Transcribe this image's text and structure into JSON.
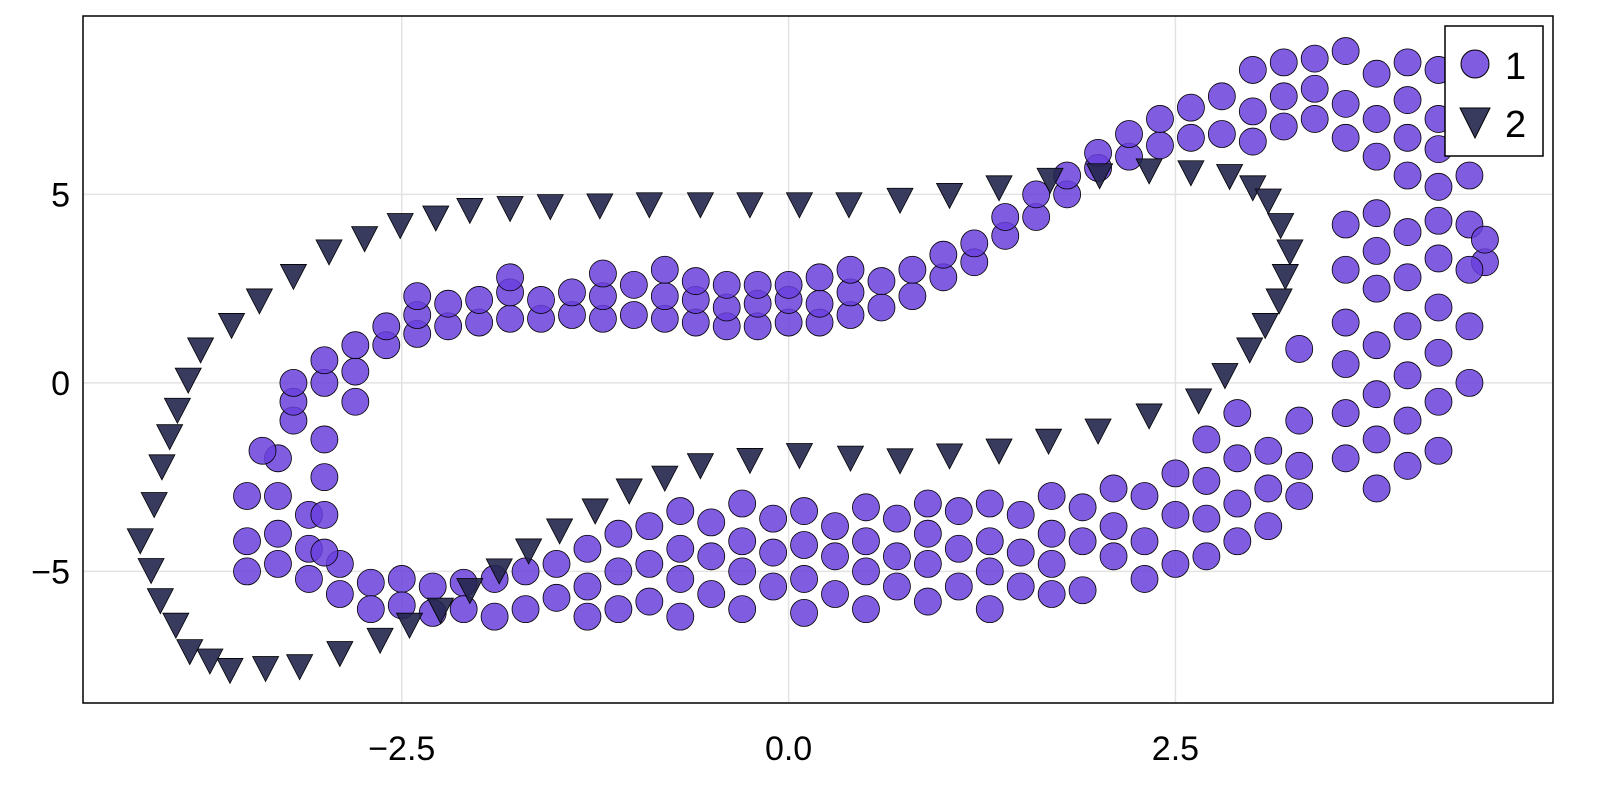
{
  "chart_data": {
    "type": "scatter",
    "title": "",
    "xlabel": "",
    "ylabel": "",
    "xlim": [
      -4.56,
      4.94
    ],
    "ylim": [
      -8.49,
      9.73
    ],
    "grid": true,
    "legend_position": "top-right",
    "xticks": [
      {
        "value": -2.5,
        "label": "−2.5"
      },
      {
        "value": 0,
        "label": "0.0"
      },
      {
        "value": 2.5,
        "label": "2.5"
      }
    ],
    "yticks": [
      {
        "value": -5,
        "label": "−5"
      },
      {
        "value": 0,
        "label": "0"
      },
      {
        "value": 5,
        "label": "5"
      }
    ],
    "series": [
      {
        "name": "1",
        "marker": "circle",
        "color": "#6a40dc",
        "points": [
          [
            -3.2,
            -1
          ],
          [
            -3.2,
            -0.5
          ],
          [
            -3.2,
            0
          ],
          [
            -3.0,
            -1.5
          ],
          [
            -3.0,
            0
          ],
          [
            -3.0,
            0.6
          ],
          [
            -2.8,
            0.3
          ],
          [
            -2.8,
            1.0
          ],
          [
            -2.6,
            1.0
          ],
          [
            -2.6,
            1.5
          ],
          [
            -2.4,
            1.3
          ],
          [
            -2.4,
            1.8
          ],
          [
            -2.4,
            2.3
          ],
          [
            -2.2,
            1.5
          ],
          [
            -2.2,
            2.1
          ],
          [
            -2.0,
            1.6
          ],
          [
            -2.0,
            2.2
          ],
          [
            -1.8,
            1.7
          ],
          [
            -1.8,
            2.4
          ],
          [
            -1.8,
            2.8
          ],
          [
            -1.6,
            1.7
          ],
          [
            -1.6,
            2.2
          ],
          [
            -1.4,
            1.8
          ],
          [
            -1.4,
            2.4
          ],
          [
            -1.2,
            1.7
          ],
          [
            -1.2,
            2.3
          ],
          [
            -1.2,
            2.9
          ],
          [
            -1.0,
            1.8
          ],
          [
            -1.0,
            2.6
          ],
          [
            -0.8,
            1.7
          ],
          [
            -0.8,
            2.3
          ],
          [
            -0.8,
            3.0
          ],
          [
            -0.6,
            1.6
          ],
          [
            -0.6,
            2.2
          ],
          [
            -0.6,
            2.7
          ],
          [
            -0.4,
            1.5
          ],
          [
            -0.4,
            2.0
          ],
          [
            -0.4,
            2.6
          ],
          [
            -0.2,
            1.5
          ],
          [
            -0.2,
            2.1
          ],
          [
            -0.2,
            2.6
          ],
          [
            0,
            1.6
          ],
          [
            0,
            2.2
          ],
          [
            0,
            2.6
          ],
          [
            0.2,
            1.6
          ],
          [
            0.2,
            2.1
          ],
          [
            0.2,
            2.8
          ],
          [
            0.4,
            1.8
          ],
          [
            0.4,
            2.4
          ],
          [
            0.4,
            3.0
          ],
          [
            0.6,
            2.0
          ],
          [
            0.6,
            2.7
          ],
          [
            0.8,
            2.3
          ],
          [
            0.8,
            3.0
          ],
          [
            1.0,
            2.8
          ],
          [
            1.0,
            3.4
          ],
          [
            1.2,
            3.2
          ],
          [
            1.2,
            3.7
          ],
          [
            1.4,
            3.9
          ],
          [
            1.4,
            4.4
          ],
          [
            1.6,
            4.4
          ],
          [
            1.6,
            5.0
          ],
          [
            1.8,
            5.0
          ],
          [
            1.8,
            5.5
          ],
          [
            2.0,
            5.7
          ],
          [
            2.0,
            6.1
          ],
          [
            2.2,
            6.0
          ],
          [
            2.2,
            6.6
          ],
          [
            2.4,
            6.3
          ],
          [
            2.4,
            7.0
          ],
          [
            2.6,
            6.5
          ],
          [
            2.6,
            7.3
          ],
          [
            2.8,
            6.6
          ],
          [
            2.8,
            7.6
          ],
          [
            3.0,
            6.4
          ],
          [
            3.0,
            7.2
          ],
          [
            3.0,
            8.3
          ],
          [
            3.2,
            6.8
          ],
          [
            3.2,
            7.6
          ],
          [
            3.2,
            8.5
          ],
          [
            3.4,
            7.0
          ],
          [
            3.4,
            7.8
          ],
          [
            3.4,
            8.6
          ],
          [
            3.6,
            6.5
          ],
          [
            3.6,
            7.4
          ],
          [
            3.6,
            8.8
          ],
          [
            3.8,
            6.0
          ],
          [
            3.8,
            7.0
          ],
          [
            3.8,
            8.2
          ],
          [
            4.0,
            5.5
          ],
          [
            4.0,
            6.5
          ],
          [
            4.0,
            7.5
          ],
          [
            4.0,
            8.5
          ],
          [
            4.2,
            5.2
          ],
          [
            4.2,
            6.2
          ],
          [
            4.2,
            7.0
          ],
          [
            4.2,
            8.3
          ],
          [
            4.4,
            4.2
          ],
          [
            4.4,
            5.5
          ],
          [
            4.4,
            6.8
          ],
          [
            4.5,
            3.2
          ],
          [
            4.5,
            3.8
          ],
          [
            3.6,
            4.2
          ],
          [
            3.6,
            3.0
          ],
          [
            3.6,
            1.6
          ],
          [
            3.6,
            0.5
          ],
          [
            3.6,
            -0.8
          ],
          [
            3.6,
            -2.0
          ],
          [
            3.8,
            4.5
          ],
          [
            3.8,
            3.5
          ],
          [
            3.8,
            2.5
          ],
          [
            3.8,
            1.0
          ],
          [
            3.8,
            -0.3
          ],
          [
            3.8,
            -1.5
          ],
          [
            3.8,
            -2.8
          ],
          [
            4.0,
            4.0
          ],
          [
            4.0,
            2.8
          ],
          [
            4.0,
            1.5
          ],
          [
            4.0,
            0.2
          ],
          [
            4.0,
            -1.0
          ],
          [
            4.0,
            -2.2
          ],
          [
            4.2,
            4.3
          ],
          [
            4.2,
            3.3
          ],
          [
            4.2,
            2.0
          ],
          [
            4.2,
            0.8
          ],
          [
            4.2,
            -0.5
          ],
          [
            4.2,
            -1.8
          ],
          [
            4.4,
            3.0
          ],
          [
            4.4,
            1.5
          ],
          [
            4.4,
            0.0
          ],
          [
            3.3,
            -1.0
          ],
          [
            3.3,
            -2.2
          ],
          [
            3.3,
            -3.0
          ],
          [
            3.3,
            0.9
          ],
          [
            3.1,
            -1.8
          ],
          [
            3.1,
            -2.8
          ],
          [
            3.1,
            -3.8
          ],
          [
            2.9,
            -0.8
          ],
          [
            2.9,
            -2.0
          ],
          [
            2.9,
            -3.2
          ],
          [
            2.9,
            -4.2
          ],
          [
            2.7,
            -1.5
          ],
          [
            2.7,
            -2.6
          ],
          [
            2.7,
            -3.6
          ],
          [
            2.7,
            -4.6
          ],
          [
            2.5,
            -2.4
          ],
          [
            2.5,
            -3.5
          ],
          [
            2.5,
            -4.8
          ],
          [
            2.3,
            -3.0
          ],
          [
            2.3,
            -4.2
          ],
          [
            2.3,
            -5.2
          ],
          [
            2.1,
            -2.8
          ],
          [
            2.1,
            -3.8
          ],
          [
            2.1,
            -4.6
          ],
          [
            1.9,
            -3.3
          ],
          [
            1.9,
            -4.2
          ],
          [
            1.9,
            -5.5
          ],
          [
            1.7,
            -3.0
          ],
          [
            1.7,
            -4.0
          ],
          [
            1.7,
            -4.8
          ],
          [
            1.7,
            -5.6
          ],
          [
            1.5,
            -3.5
          ],
          [
            1.5,
            -4.5
          ],
          [
            1.5,
            -5.4
          ],
          [
            1.3,
            -3.2
          ],
          [
            1.3,
            -4.2
          ],
          [
            1.3,
            -5.0
          ],
          [
            1.3,
            -6.0
          ],
          [
            1.1,
            -3.4
          ],
          [
            1.1,
            -4.4
          ],
          [
            1.1,
            -5.4
          ],
          [
            0.9,
            -3.2
          ],
          [
            0.9,
            -4.0
          ],
          [
            0.9,
            -4.8
          ],
          [
            0.9,
            -5.8
          ],
          [
            0.7,
            -3.6
          ],
          [
            0.7,
            -4.6
          ],
          [
            0.7,
            -5.4
          ],
          [
            0.5,
            -3.3
          ],
          [
            0.5,
            -4.2
          ],
          [
            0.5,
            -5.0
          ],
          [
            0.5,
            -6.0
          ],
          [
            0.3,
            -3.8
          ],
          [
            0.3,
            -4.6
          ],
          [
            0.3,
            -5.6
          ],
          [
            0.1,
            -3.4
          ],
          [
            0.1,
            -4.3
          ],
          [
            0.1,
            -5.2
          ],
          [
            0.1,
            -6.1
          ],
          [
            -0.1,
            -3.6
          ],
          [
            -0.1,
            -4.5
          ],
          [
            -0.1,
            -5.4
          ],
          [
            -0.3,
            -3.2
          ],
          [
            -0.3,
            -4.2
          ],
          [
            -0.3,
            -5.0
          ],
          [
            -0.3,
            -6.0
          ],
          [
            -0.5,
            -3.7
          ],
          [
            -0.5,
            -4.6
          ],
          [
            -0.5,
            -5.6
          ],
          [
            -0.7,
            -3.4
          ],
          [
            -0.7,
            -4.4
          ],
          [
            -0.7,
            -5.2
          ],
          [
            -0.7,
            -6.2
          ],
          [
            -0.9,
            -3.8
          ],
          [
            -0.9,
            -4.8
          ],
          [
            -0.9,
            -5.8
          ],
          [
            -1.1,
            -4.0
          ],
          [
            -1.1,
            -5.0
          ],
          [
            -1.1,
            -6.0
          ],
          [
            -1.3,
            -4.4
          ],
          [
            -1.3,
            -5.4
          ],
          [
            -1.3,
            -6.2
          ],
          [
            -1.5,
            -4.8
          ],
          [
            -1.5,
            -5.7
          ],
          [
            -1.7,
            -5.0
          ],
          [
            -1.7,
            -6.0
          ],
          [
            -1.9,
            -5.2
          ],
          [
            -1.9,
            -6.2
          ],
          [
            -2.1,
            -5.3
          ],
          [
            -2.1,
            -6.0
          ],
          [
            -2.3,
            -5.4
          ],
          [
            -2.3,
            -6.1
          ],
          [
            -2.5,
            -5.2
          ],
          [
            -2.5,
            -5.9
          ],
          [
            -2.7,
            -5.3
          ],
          [
            -2.7,
            -6.0
          ],
          [
            -2.9,
            -4.8
          ],
          [
            -2.9,
            -5.6
          ],
          [
            -3.1,
            -3.5
          ],
          [
            -3.1,
            -4.4
          ],
          [
            -3.1,
            -5.2
          ],
          [
            -3.3,
            -2.0
          ],
          [
            -3.3,
            -3.0
          ],
          [
            -3.3,
            -4.0
          ],
          [
            -3.3,
            -4.8
          ],
          [
            -3.5,
            -3.0
          ],
          [
            -3.5,
            -4.2
          ],
          [
            -3.5,
            -5.0
          ],
          [
            -3.0,
            -2.5
          ],
          [
            -3.0,
            -3.5
          ],
          [
            -3.0,
            -4.5
          ],
          [
            -2.8,
            -0.5
          ],
          [
            -3.4,
            -1.8
          ]
        ]
      },
      {
        "name": "2",
        "marker": "triangle-down",
        "color": "#22264d",
        "points": [
          [
            -4.19,
            -4.16
          ],
          [
            -4.1,
            -3.2
          ],
          [
            -4.05,
            -2.2
          ],
          [
            -4.0,
            -1.4
          ],
          [
            -3.95,
            -0.7
          ],
          [
            -3.88,
            0.1
          ],
          [
            -3.8,
            0.9
          ],
          [
            -3.6,
            1.55
          ],
          [
            -3.42,
            2.2
          ],
          [
            -3.2,
            2.85
          ],
          [
            -2.97,
            3.5
          ],
          [
            -2.74,
            3.85
          ],
          [
            -2.51,
            4.2
          ],
          [
            -2.28,
            4.4
          ],
          [
            -2.06,
            4.6
          ],
          [
            -1.8,
            4.65
          ],
          [
            -1.54,
            4.7
          ],
          [
            -1.22,
            4.72
          ],
          [
            -0.9,
            4.75
          ],
          [
            -0.57,
            4.75
          ],
          [
            -0.25,
            4.75
          ],
          [
            0.07,
            4.75
          ],
          [
            0.39,
            4.75
          ],
          [
            0.72,
            4.87
          ],
          [
            1.04,
            5.0
          ],
          [
            1.36,
            5.2
          ],
          [
            1.69,
            5.4
          ],
          [
            2.01,
            5.52
          ],
          [
            2.33,
            5.65
          ],
          [
            2.6,
            5.6
          ],
          [
            2.85,
            5.5
          ],
          [
            3.0,
            5.2
          ],
          [
            3.1,
            4.85
          ],
          [
            3.18,
            4.2
          ],
          [
            3.24,
            3.5
          ],
          [
            3.21,
            2.85
          ],
          [
            3.17,
            2.2
          ],
          [
            3.08,
            1.55
          ],
          [
            2.98,
            0.9
          ],
          [
            2.82,
            0.22
          ],
          [
            2.65,
            -0.45
          ],
          [
            2.33,
            -0.85
          ],
          [
            2.0,
            -1.25
          ],
          [
            1.68,
            -1.52
          ],
          [
            1.36,
            -1.78
          ],
          [
            1.04,
            -1.91
          ],
          [
            0.72,
            -2.04
          ],
          [
            0.4,
            -1.97
          ],
          [
            0.07,
            -1.9
          ],
          [
            -0.25,
            -2.03
          ],
          [
            -0.57,
            -2.17
          ],
          [
            -0.8,
            -2.5
          ],
          [
            -1.03,
            -2.84
          ],
          [
            -1.25,
            -3.37
          ],
          [
            -1.48,
            -3.9
          ],
          [
            -1.68,
            -4.43
          ],
          [
            -1.87,
            -4.96
          ],
          [
            -2.06,
            -5.48
          ],
          [
            -2.25,
            -6.0
          ],
          [
            -2.45,
            -6.4
          ],
          [
            -2.64,
            -6.8
          ],
          [
            -2.9,
            -7.15
          ],
          [
            -3.16,
            -7.5
          ],
          [
            -3.38,
            -7.55
          ],
          [
            -3.61,
            -7.6
          ],
          [
            -3.74,
            -7.35
          ],
          [
            -3.87,
            -7.1
          ],
          [
            -3.96,
            -6.4
          ],
          [
            -4.06,
            -5.75
          ],
          [
            -4.12,
            -4.95
          ]
        ]
      }
    ]
  }
}
